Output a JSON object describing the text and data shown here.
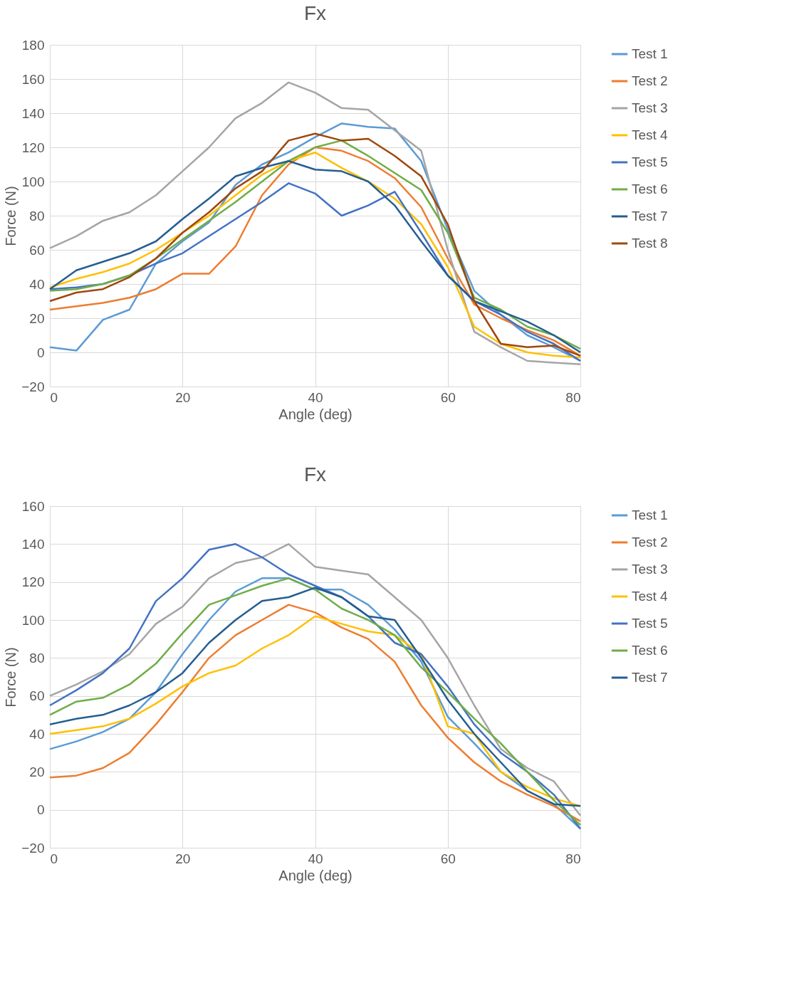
{
  "chart_data": [
    {
      "type": "line",
      "title": "Fx",
      "xlabel": "Angle (deg)",
      "ylabel": "Force (N)",
      "xlim": [
        0,
        80
      ],
      "xticks": [
        0,
        20,
        40,
        60,
        80
      ],
      "ylim": [
        -20,
        180
      ],
      "yticks": [
        -20,
        0,
        20,
        40,
        60,
        80,
        100,
        120,
        140,
        160,
        180
      ],
      "grid": true,
      "legend": "right",
      "x": [
        0,
        4,
        8,
        12,
        16,
        20,
        24,
        28,
        32,
        36,
        40,
        44,
        48,
        52,
        56,
        60,
        64,
        68,
        72,
        76,
        80
      ],
      "series": [
        {
          "name": "Test 1",
          "color": "#5b9bd5",
          "values": [
            3,
            1,
            19,
            25,
            52,
            65,
            76,
            98,
            110,
            117,
            126,
            134,
            132,
            131,
            112,
            72,
            36,
            22,
            10,
            3,
            -5
          ]
        },
        {
          "name": "Test 2",
          "color": "#ed7d31",
          "values": [
            25,
            27,
            29,
            32,
            37,
            46,
            46,
            62,
            92,
            110,
            120,
            118,
            112,
            102,
            85,
            55,
            28,
            20,
            13,
            7,
            -2
          ]
        },
        {
          "name": "Test 3",
          "color": "#a5a5a5",
          "values": [
            61,
            68,
            77,
            82,
            92,
            106,
            120,
            137,
            146,
            158,
            152,
            143,
            142,
            130,
            118,
            60,
            12,
            3,
            -5,
            -6,
            -7
          ]
        },
        {
          "name": "Test 4",
          "color": "#ffc000",
          "values": [
            38,
            43,
            47,
            52,
            60,
            70,
            80,
            92,
            104,
            112,
            117,
            108,
            100,
            90,
            75,
            50,
            15,
            5,
            0,
            -2,
            -3
          ]
        },
        {
          "name": "Test 5",
          "color": "#4472c4",
          "values": [
            37,
            38,
            40,
            45,
            52,
            58,
            68,
            78,
            88,
            99,
            93,
            80,
            86,
            94,
            70,
            45,
            30,
            22,
            12,
            5,
            -5
          ]
        },
        {
          "name": "Test 6",
          "color": "#70ad47",
          "values": [
            36,
            37,
            40,
            45,
            55,
            66,
            77,
            88,
            100,
            112,
            120,
            124,
            115,
            105,
            95,
            70,
            32,
            25,
            15,
            10,
            2
          ]
        },
        {
          "name": "Test 7",
          "color": "#255e91",
          "values": [
            37,
            48,
            53,
            58,
            65,
            78,
            90,
            103,
            108,
            112,
            107,
            106,
            100,
            86,
            65,
            45,
            30,
            24,
            18,
            10,
            0
          ]
        },
        {
          "name": "Test 8",
          "color": "#9e480e",
          "values": [
            30,
            35,
            37,
            44,
            55,
            70,
            82,
            96,
            106,
            124,
            128,
            124,
            125,
            115,
            103,
            75,
            30,
            5,
            3,
            4,
            -2
          ]
        }
      ]
    },
    {
      "type": "line",
      "title": "Fx",
      "xlabel": "Angle (deg)",
      "ylabel": "Force (N)",
      "xlim": [
        0,
        80
      ],
      "xticks": [
        0,
        20,
        40,
        60,
        80
      ],
      "ylim": [
        -20,
        160
      ],
      "yticks": [
        -20,
        0,
        20,
        40,
        60,
        80,
        100,
        120,
        140,
        160
      ],
      "grid": true,
      "legend": "right",
      "x": [
        0,
        4,
        8,
        12,
        16,
        20,
        24,
        28,
        32,
        36,
        40,
        44,
        48,
        52,
        56,
        60,
        64,
        68,
        72,
        76,
        80
      ],
      "series": [
        {
          "name": "Test 1",
          "color": "#5b9bd5",
          "values": [
            32,
            36,
            41,
            48,
            62,
            82,
            100,
            115,
            122,
            122,
            116,
            116,
            108,
            95,
            78,
            49,
            35,
            20,
            10,
            3,
            -10
          ]
        },
        {
          "name": "Test 2",
          "color": "#ed7d31",
          "values": [
            17,
            18,
            22,
            30,
            45,
            62,
            80,
            92,
            100,
            108,
            104,
            96,
            90,
            78,
            55,
            38,
            25,
            15,
            8,
            2,
            -6
          ]
        },
        {
          "name": "Test 3",
          "color": "#a5a5a5",
          "values": [
            60,
            66,
            73,
            82,
            98,
            107,
            122,
            130,
            133,
            140,
            128,
            126,
            124,
            112,
            100,
            80,
            55,
            32,
            22,
            15,
            -3
          ]
        },
        {
          "name": "Test 4",
          "color": "#ffc000",
          "values": [
            40,
            42,
            44,
            48,
            56,
            65,
            72,
            76,
            85,
            92,
            102,
            98,
            94,
            92,
            82,
            44,
            40,
            20,
            12,
            6,
            2
          ]
        },
        {
          "name": "Test 5",
          "color": "#4472c4",
          "values": [
            55,
            63,
            72,
            85,
            110,
            122,
            137,
            140,
            133,
            124,
            118,
            112,
            102,
            88,
            82,
            65,
            45,
            30,
            20,
            8,
            -10
          ]
        },
        {
          "name": "Test 6",
          "color": "#70ad47",
          "values": [
            50,
            57,
            59,
            66,
            77,
            93,
            108,
            113,
            118,
            122,
            116,
            106,
            100,
            92,
            75,
            62,
            48,
            35,
            20,
            5,
            -8
          ]
        },
        {
          "name": "Test 7",
          "color": "#255e91",
          "values": [
            45,
            48,
            50,
            55,
            62,
            72,
            88,
            100,
            110,
            112,
            117,
            112,
            102,
            100,
            80,
            58,
            40,
            25,
            10,
            3,
            2
          ]
        }
      ]
    }
  ]
}
